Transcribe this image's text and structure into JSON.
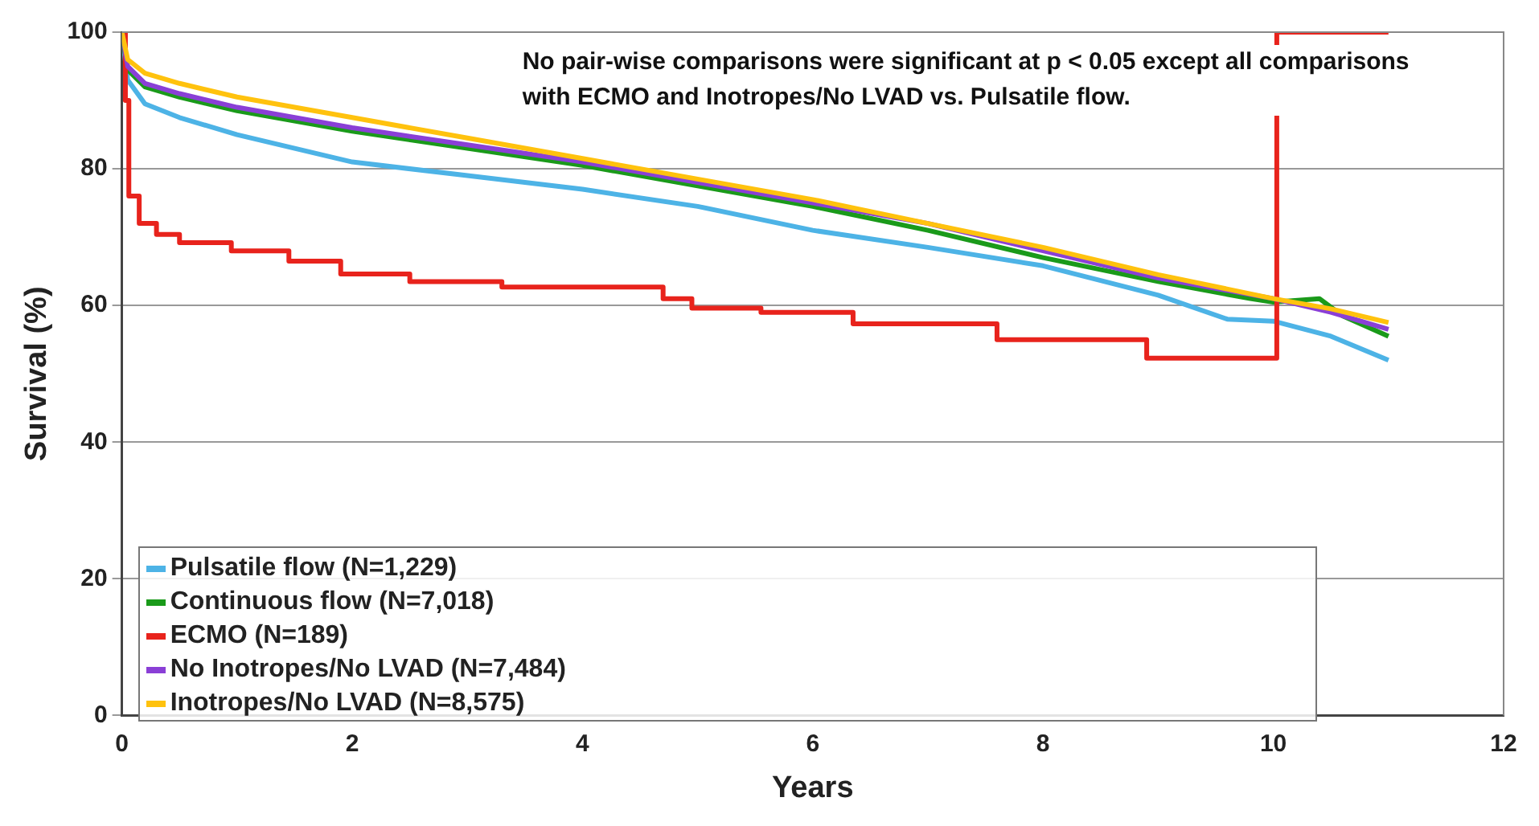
{
  "chart_data": {
    "type": "line",
    "xlabel": "Years",
    "ylabel": "Survival (%)",
    "xlim": [
      0,
      12
    ],
    "xticks": [
      0,
      2,
      4,
      6,
      8,
      10,
      12
    ],
    "ylim": [
      0,
      100
    ],
    "yticks": [
      0,
      20,
      40,
      60,
      80,
      100
    ],
    "grid": "y",
    "legend": "bottom left",
    "marker": "none",
    "annotations": [
      "No pair-wise comparisons were significant at p < 0.05 except all comparisons with ECMO and Inotropes/No LVAD vs. Pulsatile flow."
    ],
    "series": [
      {
        "name": "Pulsatile flow (N=1,229)",
        "color": "#4db3e6",
        "x": [
          0,
          0.05,
          0.2,
          0.5,
          1,
          2,
          3,
          4,
          5,
          6,
          7,
          8,
          9,
          9.6,
          10,
          10.5,
          11
        ],
        "values": [
          100,
          93,
          89.5,
          87.5,
          85,
          81,
          79,
          77,
          74.5,
          71,
          68.5,
          65.8,
          61.5,
          58,
          57.7,
          55.5,
          52
        ]
      },
      {
        "name": "Continuous flow (N=7,018)",
        "color": "#1a9a1a",
        "x": [
          0,
          0.05,
          0.2,
          0.5,
          1,
          2,
          3,
          4,
          5,
          6,
          7,
          8,
          9,
          9.8,
          10,
          10.4,
          10.6,
          11
        ],
        "values": [
          100,
          94.5,
          92,
          90.5,
          88.5,
          85.5,
          83,
          80.5,
          77.5,
          74.5,
          71,
          67,
          63.5,
          61,
          60.5,
          61,
          58.5,
          55.5
        ]
      },
      {
        "name": "ECMO (N=189)",
        "type": "step",
        "color": "#e8231c",
        "x": [
          0,
          0.03,
          0.06,
          0.15,
          0.3,
          0.5,
          0.95,
          1.45,
          1.9,
          2.5,
          3.3,
          4.7,
          4.95,
          5.55,
          6.35,
          7.6,
          8.9,
          10.03,
          11
        ],
        "values": [
          100,
          90,
          76,
          72,
          70.4,
          69.2,
          68,
          66.5,
          64.6,
          63.5,
          62.7,
          61,
          59.6,
          59,
          57.3,
          55,
          52.3,
          100,
          100
        ]
      },
      {
        "name": "No Inotropes/No LVAD (N=7,484)",
        "color": "#8a3fd6",
        "x": [
          0,
          0.05,
          0.2,
          0.5,
          1,
          2,
          3,
          4,
          5,
          6,
          7,
          8,
          9,
          10,
          10.5,
          11
        ],
        "values": [
          100,
          95,
          92.5,
          91,
          89,
          86,
          83.5,
          81,
          78,
          75,
          72,
          68,
          64,
          61,
          59,
          56.5
        ]
      },
      {
        "name": "Inotropes/No LVAD (N=8,575)",
        "color": "#ffc20e",
        "x": [
          0,
          0.05,
          0.2,
          0.5,
          1,
          2,
          3,
          4,
          5,
          6,
          7,
          8,
          9,
          10,
          10.5,
          11
        ],
        "values": [
          100,
          96,
          94,
          92.5,
          90.5,
          87.5,
          84.5,
          81.5,
          78.5,
          75.5,
          72,
          68.5,
          64.5,
          61,
          59.5,
          57.5
        ]
      }
    ]
  }
}
